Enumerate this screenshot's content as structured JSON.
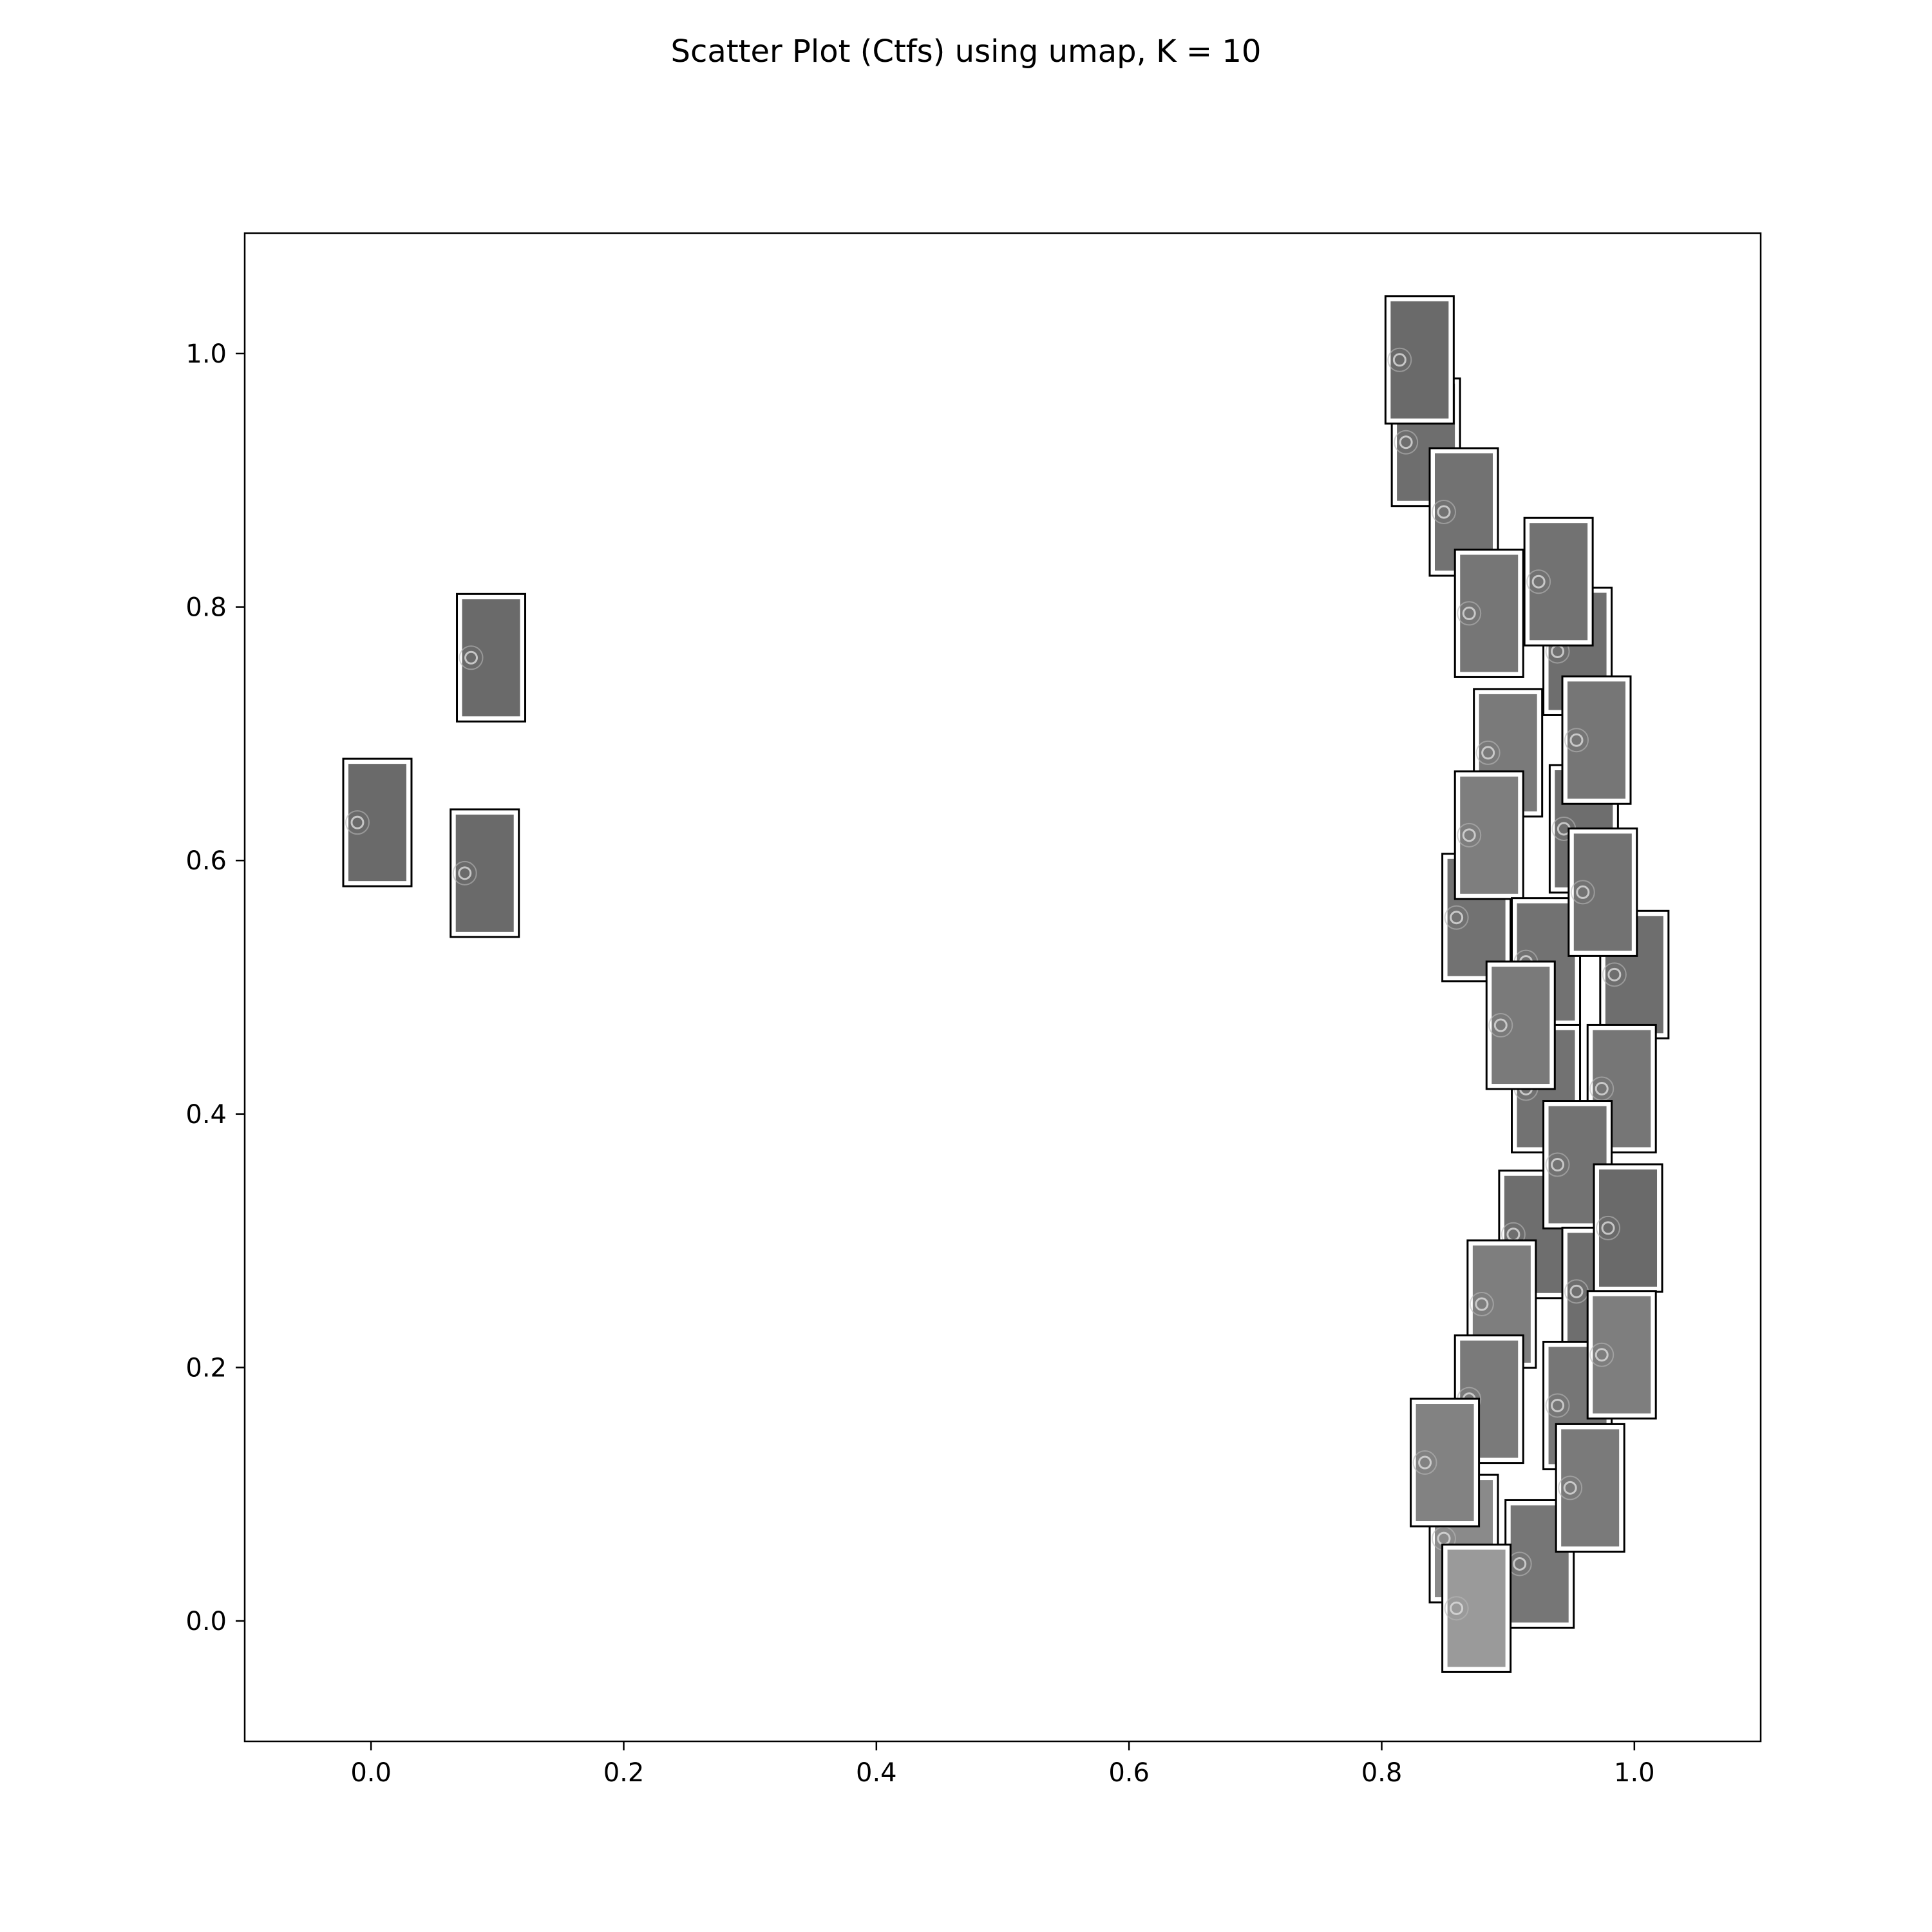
{
  "chart_data": {
    "type": "scatter",
    "title": "Scatter Plot (Ctfs) using umap, K = 10",
    "xlabel": "",
    "ylabel": "",
    "xlim": [
      -0.1,
      1.1
    ],
    "ylim": [
      -0.095,
      1.095
    ],
    "xticks": [
      "0.0",
      "0.2",
      "0.4",
      "0.6",
      "0.8",
      "1.0"
    ],
    "yticks": [
      "0.0",
      "0.2",
      "0.4",
      "0.6",
      "0.8",
      "1.0"
    ],
    "grid": false,
    "marker": "ctf-image-thumbnail",
    "points": [
      {
        "x": 0.005,
        "y": 0.63,
        "shade": "#6a6a6a"
      },
      {
        "x": 0.09,
        "y": 0.59,
        "shade": "#6a6a6a"
      },
      {
        "x": 0.095,
        "y": 0.76,
        "shade": "#6a6a6a"
      },
      {
        "x": 0.835,
        "y": 0.93,
        "shade": "#6e6e6e"
      },
      {
        "x": 0.83,
        "y": 0.995,
        "shade": "#6a6a6a"
      },
      {
        "x": 0.865,
        "y": 0.875,
        "shade": "#727272"
      },
      {
        "x": 0.885,
        "y": 0.795,
        "shade": "#767676"
      },
      {
        "x": 0.955,
        "y": 0.765,
        "shade": "#6e6e6e"
      },
      {
        "x": 0.94,
        "y": 0.82,
        "shade": "#727272"
      },
      {
        "x": 0.9,
        "y": 0.685,
        "shade": "#7a7a7a"
      },
      {
        "x": 0.96,
        "y": 0.625,
        "shade": "#6e6e6e"
      },
      {
        "x": 0.97,
        "y": 0.695,
        "shade": "#767676"
      },
      {
        "x": 0.875,
        "y": 0.555,
        "shade": "#727272"
      },
      {
        "x": 0.885,
        "y": 0.62,
        "shade": "#7e7e7e"
      },
      {
        "x": 0.93,
        "y": 0.52,
        "shade": "#727272"
      },
      {
        "x": 1.0,
        "y": 0.51,
        "shade": "#6e6e6e"
      },
      {
        "x": 0.975,
        "y": 0.575,
        "shade": "#727272"
      },
      {
        "x": 0.93,
        "y": 0.42,
        "shade": "#727272"
      },
      {
        "x": 0.91,
        "y": 0.47,
        "shade": "#7a7a7a"
      },
      {
        "x": 0.99,
        "y": 0.42,
        "shade": "#767676"
      },
      {
        "x": 0.92,
        "y": 0.305,
        "shade": "#6e6e6e"
      },
      {
        "x": 0.955,
        "y": 0.36,
        "shade": "#727272"
      },
      {
        "x": 0.97,
        "y": 0.26,
        "shade": "#6e6e6e"
      },
      {
        "x": 0.995,
        "y": 0.31,
        "shade": "#6a6a6a"
      },
      {
        "x": 0.895,
        "y": 0.25,
        "shade": "#7e7e7e"
      },
      {
        "x": 0.885,
        "y": 0.175,
        "shade": "#7a7a7a"
      },
      {
        "x": 0.955,
        "y": 0.17,
        "shade": "#767676"
      },
      {
        "x": 0.99,
        "y": 0.21,
        "shade": "#7e7e7e"
      },
      {
        "x": 0.865,
        "y": 0.065,
        "shade": "#8a8a8a"
      },
      {
        "x": 0.85,
        "y": 0.125,
        "shade": "#828282"
      },
      {
        "x": 0.925,
        "y": 0.045,
        "shade": "#767676"
      },
      {
        "x": 0.965,
        "y": 0.105,
        "shade": "#7a7a7a"
      },
      {
        "x": 0.875,
        "y": 0.01,
        "shade": "#9a9a9a"
      }
    ]
  }
}
